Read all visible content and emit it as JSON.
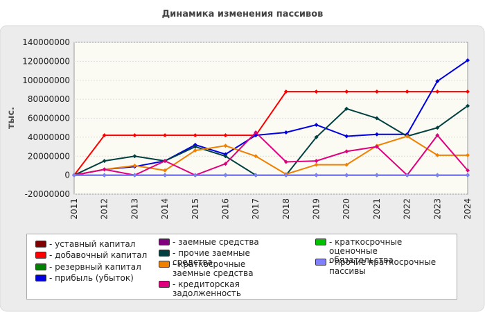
{
  "chart_data": {
    "type": "line",
    "title": "Динамика изменения пассивов",
    "y_label": "тыс.",
    "categories": [
      "2011",
      "2012",
      "2013",
      "2014",
      "2015",
      "2016",
      "2017",
      "2018",
      "2019",
      "2020",
      "2021",
      "2022",
      "2023",
      "2024"
    ],
    "ylim": [
      -20000000,
      140000000
    ],
    "yticks": [
      -20000000,
      0,
      20000000,
      40000000,
      60000000,
      80000000,
      100000000,
      120000000,
      140000000
    ],
    "grid": true,
    "series": [
      {
        "name": "- уставный капитал",
        "color": "#800000",
        "values": [
          0,
          0,
          0,
          0,
          0,
          0,
          0,
          0,
          0,
          0,
          0,
          0,
          0,
          0
        ]
      },
      {
        "name": "- добавочный капитал",
        "color": "#ff0000",
        "values": [
          0,
          42000000,
          42000000,
          42000000,
          42000000,
          42000000,
          42000000,
          88000000,
          88000000,
          88000000,
          88000000,
          88000000,
          88000000,
          88000000
        ]
      },
      {
        "name": "- резервный капитал",
        "color": "#008000",
        "values": [
          0,
          0,
          0,
          0,
          0,
          0,
          0,
          0,
          0,
          0,
          0,
          0,
          0,
          0
        ]
      },
      {
        "name": "- прибыль (убыток)",
        "color": "#0000e0",
        "values": [
          0,
          6000000,
          9000000,
          15000000,
          32000000,
          22000000,
          42000000,
          45000000,
          53000000,
          41000000,
          43000000,
          43000000,
          99000000,
          121000000
        ]
      },
      {
        "name": "- заемные средства",
        "color": "#800080",
        "values": [
          0,
          0,
          0,
          0,
          0,
          0,
          0,
          0,
          0,
          0,
          0,
          0,
          0,
          0
        ]
      },
      {
        "name": "- прочие заемные средства",
        "color": "#004040",
        "values": [
          0,
          15000000,
          20000000,
          15000000,
          30000000,
          20000000,
          0,
          0,
          40000000,
          70000000,
          60000000,
          41000000,
          50000000,
          73000000
        ]
      },
      {
        "name": "- краткосрочные заемные средства",
        "color": "#f08000",
        "values": [
          0,
          6000000,
          10000000,
          5000000,
          26000000,
          31000000,
          20000000,
          1000000,
          11000000,
          11000000,
          31000000,
          41000000,
          21000000,
          21000000
        ]
      },
      {
        "name": "- кредиторская задолженность",
        "color": "#e0007f",
        "values": [
          0,
          6000000,
          0,
          15000000,
          0,
          12000000,
          45000000,
          14000000,
          15000000,
          25000000,
          30000000,
          0,
          42000000,
          5000000
        ]
      },
      {
        "name": "- краткосрочные оценочные обязательства",
        "color": "#00c000",
        "values": [
          0,
          0,
          0,
          0,
          0,
          0,
          0,
          0,
          0,
          0,
          0,
          0,
          0,
          0
        ]
      },
      {
        "name": "- прочие краткосрочные пассивы",
        "color": "#8080ff",
        "values": [
          0,
          0,
          0,
          0,
          0,
          0,
          0,
          0,
          0,
          0,
          0,
          0,
          0,
          0
        ]
      }
    ]
  }
}
